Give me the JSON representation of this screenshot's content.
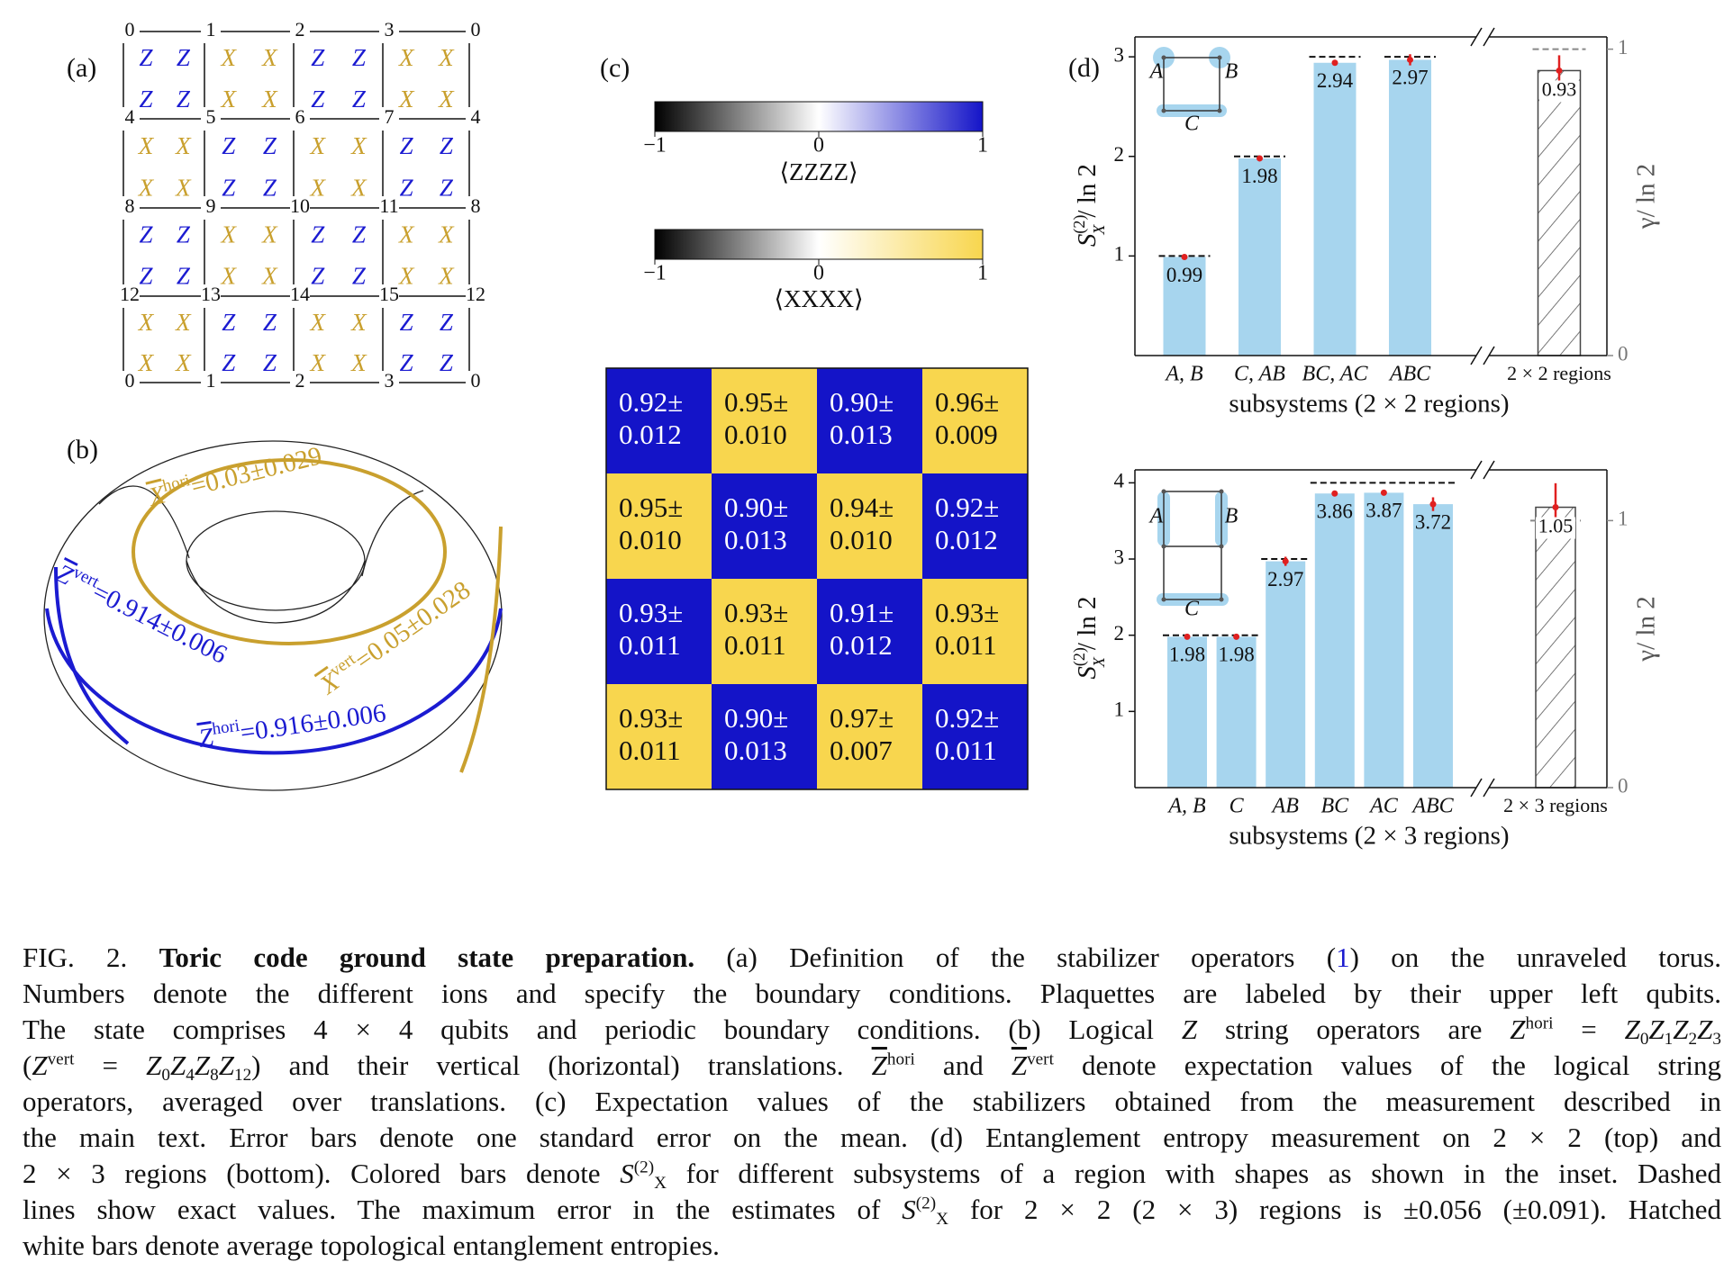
{
  "panel_labels": [
    "(a)",
    "(b)",
    "(c)",
    "(d)"
  ],
  "lattice": {
    "vertex_labels": [
      [
        0,
        1,
        2,
        3,
        0
      ],
      [
        4,
        5,
        6,
        7,
        4
      ],
      [
        8,
        9,
        10,
        11,
        8
      ],
      [
        12,
        13,
        14,
        15,
        12
      ],
      [
        0,
        1,
        2,
        3,
        0
      ]
    ],
    "plaquettes": [
      [
        "Z",
        "X",
        "Z",
        "X"
      ],
      [
        "X",
        "Z",
        "X",
        "Z"
      ],
      [
        "Z",
        "X",
        "Z",
        "X"
      ],
      [
        "X",
        "Z",
        "X",
        "Z"
      ]
    ],
    "colors": {
      "Z": "#1b1bd1",
      "X": "#c9a02e"
    }
  },
  "torus": {
    "labels": [
      {
        "symbol": "X",
        "sup": "hori",
        "text": "=0.03±0.029",
        "color": "#c9a02e"
      },
      {
        "symbol": "Z",
        "sup": "vert",
        "text": "=0.914±0.006",
        "color": "#1b1bd1"
      },
      {
        "symbol": "X",
        "sup": "vert",
        "text": "=0.05±0.028",
        "color": "#c9a02e"
      },
      {
        "symbol": "Z",
        "sup": "hori",
        "text": "=0.916±0.006",
        "color": "#1b1bd1"
      }
    ]
  },
  "stabilizers": {
    "colorbars": [
      {
        "label": "⟨ZZZZ⟩",
        "color": "#1414c8",
        "clim": [
          -1,
          1
        ],
        "ticks": [
          {
            "value": -1,
            "label": "−1"
          },
          0,
          1
        ]
      },
      {
        "label": "⟨XXXX⟩",
        "color": "#f8d64e",
        "clim": [
          -1,
          1
        ],
        "ticks": [
          {
            "value": -1,
            "label": "−1"
          },
          0,
          1
        ]
      }
    ],
    "cells": [
      [
        [
          "0.92±",
          "0.012"
        ],
        [
          "0.95±",
          "0.010"
        ],
        [
          "0.90±",
          "0.013"
        ],
        [
          "0.96±",
          "0.009"
        ]
      ],
      [
        [
          "0.95±",
          "0.010"
        ],
        [
          "0.90±",
          "0.013"
        ],
        [
          "0.94±",
          "0.010"
        ],
        [
          "0.92±",
          "0.012"
        ]
      ],
      [
        [
          "0.93±",
          "0.011"
        ],
        [
          "0.93±",
          "0.011"
        ],
        [
          "0.91±",
          "0.012"
        ],
        [
          "0.93±",
          "0.011"
        ]
      ],
      [
        [
          "0.93±",
          "0.011"
        ],
        [
          "0.90±",
          "0.013"
        ],
        [
          "0.97±",
          "0.007"
        ],
        [
          "0.92±",
          "0.011"
        ]
      ]
    ]
  },
  "chart_data": [
    {
      "type": "bar",
      "categories": [
        "A, B",
        "C, AB",
        "BC, AC",
        "ABC"
      ],
      "values": [
        0.99,
        1.98,
        2.94,
        2.97
      ],
      "errors": [
        0.01,
        0.01,
        0.01,
        0.056
      ],
      "exact": [
        1,
        2,
        3,
        3
      ],
      "color": "#a7d5ee",
      "error_color": "#e02020",
      "ylim": [
        0,
        3.2
      ],
      "yticks": [
        1,
        2,
        3
      ],
      "ylabel": {
        "symbol": "S",
        "sup": "(2)",
        "sub": "X",
        "text": "/ ln 2"
      },
      "xlabel": "subsystems (2 × 2 regions)",
      "inset_labels": [
        "A",
        "B",
        "C"
      ],
      "topological": {
        "category": "2 × 2 regions",
        "value": 0.93,
        "error": 0.05,
        "exact": 1,
        "axis": "y2"
      },
      "y2lim": [
        0,
        1.04
      ],
      "y2ticks": [
        0,
        1
      ],
      "y2label": "γ/ ln 2"
    },
    {
      "type": "bar",
      "categories": [
        "A, B",
        "C",
        "AB",
        "BC",
        "AC",
        "ABC"
      ],
      "values": [
        1.98,
        1.98,
        2.97,
        3.86,
        3.87,
        3.72
      ],
      "errors": [
        0.01,
        0.01,
        0.06,
        0.02,
        0.02,
        0.09
      ],
      "exact": [
        2,
        2,
        3,
        4,
        4,
        4
      ],
      "color": "#a7d5ee",
      "error_color": "#e02020",
      "ylim": [
        0,
        4.17
      ],
      "yticks": [
        1,
        2,
        3,
        4
      ],
      "ylabel": {
        "symbol": "S",
        "sup": "(2)",
        "sub": "X",
        "text": "/ ln 2"
      },
      "xlabel": "subsystems (2 × 3 regions)",
      "inset_labels": [
        "A",
        "B",
        "C"
      ],
      "topological": {
        "category": "2 × 3 regions",
        "value": 1.05,
        "error": 0.09,
        "exact": 1,
        "axis": "y2"
      },
      "y2lim": [
        0,
        1.19
      ],
      "y2ticks": [
        0,
        1
      ],
      "y2label": "γ/ ln 2"
    }
  ],
  "caption": {
    "lines": [
      [
        {
          "text": "FIG. 2. "
        },
        {
          "text": "Toric code ground state preparation.",
          "style": "b"
        },
        {
          "text": " (a) Definition of the stabilizer operators ("
        },
        {
          "text": "1",
          "style": "link"
        },
        {
          "text": ") on the unraveled torus."
        }
      ],
      [
        {
          "text": "Numbers denote the different ions and specify the boundary conditions. Plaquettes are labeled by their upper left qubits."
        }
      ],
      [
        {
          "text": "The state comprises 4 × 4 qubits and periodic boundary conditions. (b) Logical "
        },
        {
          "text": "Z",
          "style": "i"
        },
        {
          "text": " string operators are "
        },
        {
          "text": "Z",
          "style": "i"
        },
        {
          "text": "hori",
          "style": "sup"
        },
        {
          "text": " = "
        },
        {
          "text": "Z",
          "style": "i"
        },
        {
          "text": "0",
          "style": "sub"
        },
        {
          "text": "Z",
          "style": "i"
        },
        {
          "text": "1",
          "style": "sub"
        },
        {
          "text": "Z",
          "style": "i"
        },
        {
          "text": "2",
          "style": "sub"
        },
        {
          "text": "Z",
          "style": "i"
        },
        {
          "text": "3",
          "style": "sub"
        }
      ],
      [
        {
          "text": "("
        },
        {
          "text": "Z",
          "style": "i"
        },
        {
          "text": "vert",
          "style": "sup"
        },
        {
          "text": " = "
        },
        {
          "text": "Z",
          "style": "i"
        },
        {
          "text": "0",
          "style": "sub"
        },
        {
          "text": "Z",
          "style": "i"
        },
        {
          "text": "4",
          "style": "sub"
        },
        {
          "text": "Z",
          "style": "i"
        },
        {
          "text": "8",
          "style": "sub"
        },
        {
          "text": "Z",
          "style": "i"
        },
        {
          "text": "12",
          "style": "sub"
        },
        {
          "text": ") and their vertical (horizontal) translations. "
        },
        {
          "text": "Z",
          "style": "oi"
        },
        {
          "text": "hori",
          "style": "sup"
        },
        {
          "text": " and "
        },
        {
          "text": "Z",
          "style": "oi"
        },
        {
          "text": "vert",
          "style": "sup"
        },
        {
          "text": " denote expectation values of the logical string"
        }
      ],
      [
        {
          "text": "operators, averaged over translations. (c) Expectation values of the stabilizers obtained from the measurement described in"
        }
      ],
      [
        {
          "text": "the main text. Error bars denote one standard error on the mean. (d) Entanglement entropy measurement on 2 × 2 (top) and"
        }
      ],
      [
        {
          "text": "2 × 3 regions (bottom). Colored bars denote "
        },
        {
          "text": "S",
          "style": "i"
        },
        {
          "text": "(2)",
          "style": "sup"
        },
        {
          "text": "X",
          "style": "sub"
        },
        {
          "text": " for different subsystems of a region with shapes as shown in the inset. Dashed"
        }
      ],
      [
        {
          "text": "lines show exact values. The maximum error in the estimates of "
        },
        {
          "text": "S",
          "style": "i"
        },
        {
          "text": "(2)",
          "style": "sup"
        },
        {
          "text": "X",
          "style": "sub"
        },
        {
          "text": " for 2 × 2 (2 × 3) regions is ±0.056 (±0.091). Hatched"
        }
      ],
      [
        {
          "text": "white bars denote average topological entanglement entropies."
        }
      ]
    ]
  }
}
